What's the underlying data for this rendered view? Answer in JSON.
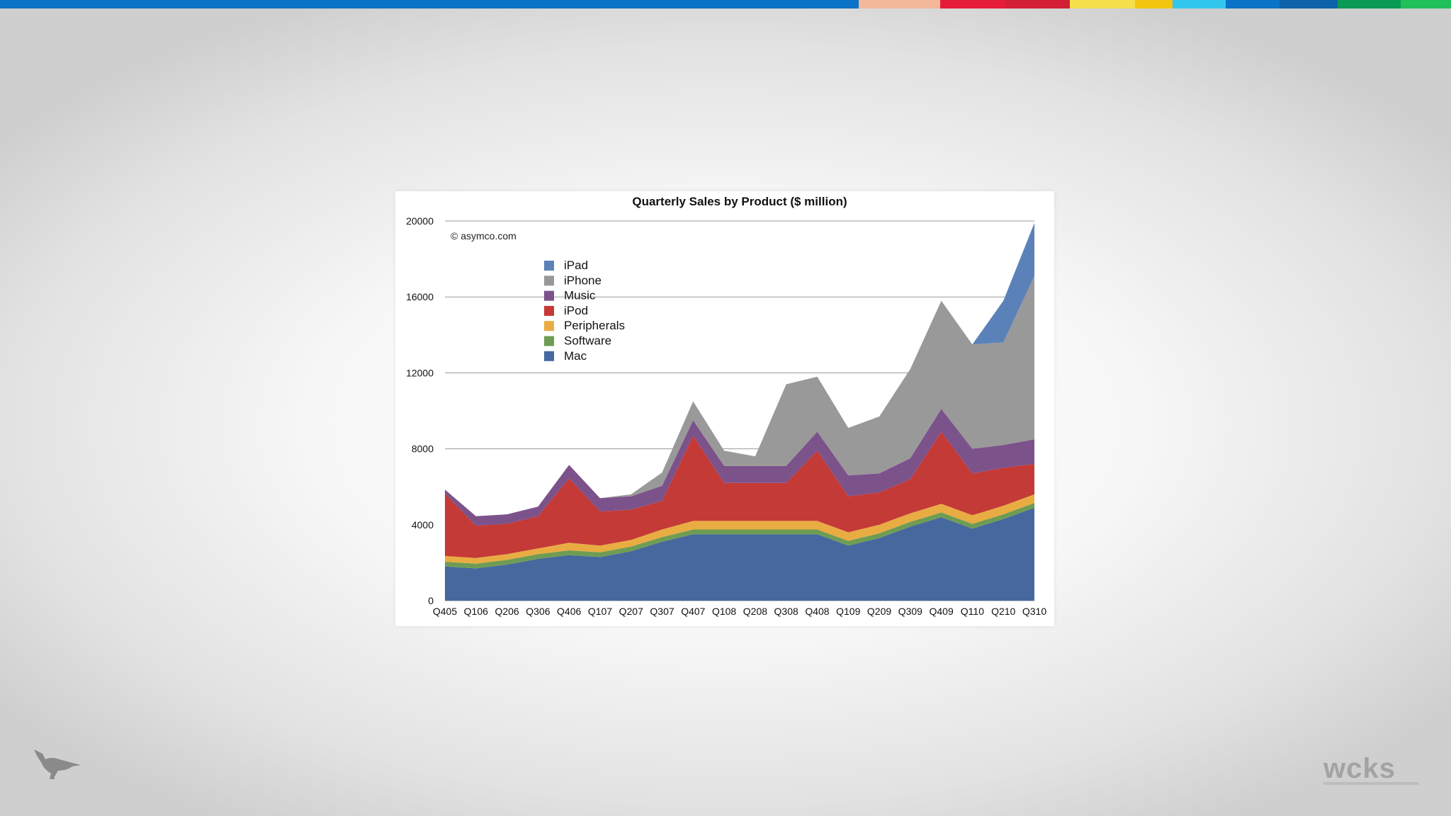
{
  "top_bar": {
    "segments": [
      {
        "color": "#0a73c8",
        "weight": 1188
      },
      {
        "color": "#f3b79a",
        "weight": 113
      },
      {
        "color": "#e41c3a",
        "weight": 90
      },
      {
        "color": "#d21f34",
        "weight": 90
      },
      {
        "color": "#f6e04c",
        "weight": 90
      },
      {
        "color": "#f2c511",
        "weight": 52
      },
      {
        "color": "#33c7ee",
        "weight": 73
      },
      {
        "color": "#0a73c8",
        "weight": 75
      },
      {
        "color": "#0d62a8",
        "weight": 80
      },
      {
        "color": "#0a9a54",
        "weight": 87
      },
      {
        "color": "#21bf5a",
        "weight": 70
      }
    ]
  },
  "logos": {
    "left": "bird-logo",
    "right": "wcks"
  },
  "chart_data": {
    "type": "area",
    "stacked": true,
    "title": "Quarterly Sales by Product ($ million)",
    "annotation": "© asymco.com",
    "xlabel": "",
    "ylabel": "",
    "ylim": [
      0,
      20000
    ],
    "yticks": [
      0,
      4000,
      8000,
      12000,
      16000,
      20000
    ],
    "grid": true,
    "legend_position": "top-left",
    "categories": [
      "Q405",
      "Q106",
      "Q206",
      "Q306",
      "Q406",
      "Q107",
      "Q207",
      "Q307",
      "Q407",
      "Q108",
      "Q208",
      "Q308",
      "Q408",
      "Q109",
      "Q209",
      "Q309",
      "Q409",
      "Q110",
      "Q210",
      "Q310"
    ],
    "series": [
      {
        "name": "Mac",
        "color": "#46689e",
        "values": [
          1800,
          1700,
          1900,
          2200,
          2400,
          2300,
          2600,
          3100,
          3500,
          3500,
          3500,
          3500,
          3500,
          2900,
          3300,
          3900,
          4400,
          3800,
          4300,
          4900
        ]
      },
      {
        "name": "Software",
        "color": "#6f9c53",
        "values": [
          250,
          250,
          250,
          250,
          250,
          250,
          250,
          250,
          250,
          250,
          250,
          250,
          250,
          250,
          250,
          250,
          250,
          250,
          250,
          250
        ]
      },
      {
        "name": "Peripherals",
        "color": "#e9ac43",
        "values": [
          300,
          300,
          300,
          300,
          400,
          350,
          350,
          400,
          450,
          450,
          450,
          450,
          450,
          450,
          450,
          450,
          450,
          450,
          450,
          450
        ]
      },
      {
        "name": "iPod",
        "color": "#c43a37",
        "values": [
          3300,
          1700,
          1600,
          1700,
          3400,
          1800,
          1600,
          1500,
          4500,
          2000,
          2000,
          2000,
          3700,
          1900,
          1700,
          1800,
          3800,
          2200,
          2000,
          1600
        ]
      },
      {
        "name": "Music",
        "color": "#7c528b",
        "values": [
          200,
          500,
          500,
          500,
          700,
          700,
          700,
          800,
          800,
          900,
          900,
          900,
          1000,
          1100,
          1000,
          1100,
          1200,
          1300,
          1200,
          1300
        ]
      },
      {
        "name": "iPhone",
        "color": "#999999",
        "values": [
          0,
          0,
          0,
          0,
          0,
          0,
          100,
          700,
          1000,
          800,
          500,
          4300,
          2900,
          2500,
          3000,
          4700,
          5700,
          5500,
          5400,
          8600
        ]
      },
      {
        "name": "iPad",
        "color": "#5b82b8",
        "values": [
          0,
          0,
          0,
          0,
          0,
          0,
          0,
          0,
          0,
          0,
          0,
          0,
          0,
          0,
          0,
          0,
          0,
          0,
          2200,
          2800
        ]
      }
    ]
  }
}
